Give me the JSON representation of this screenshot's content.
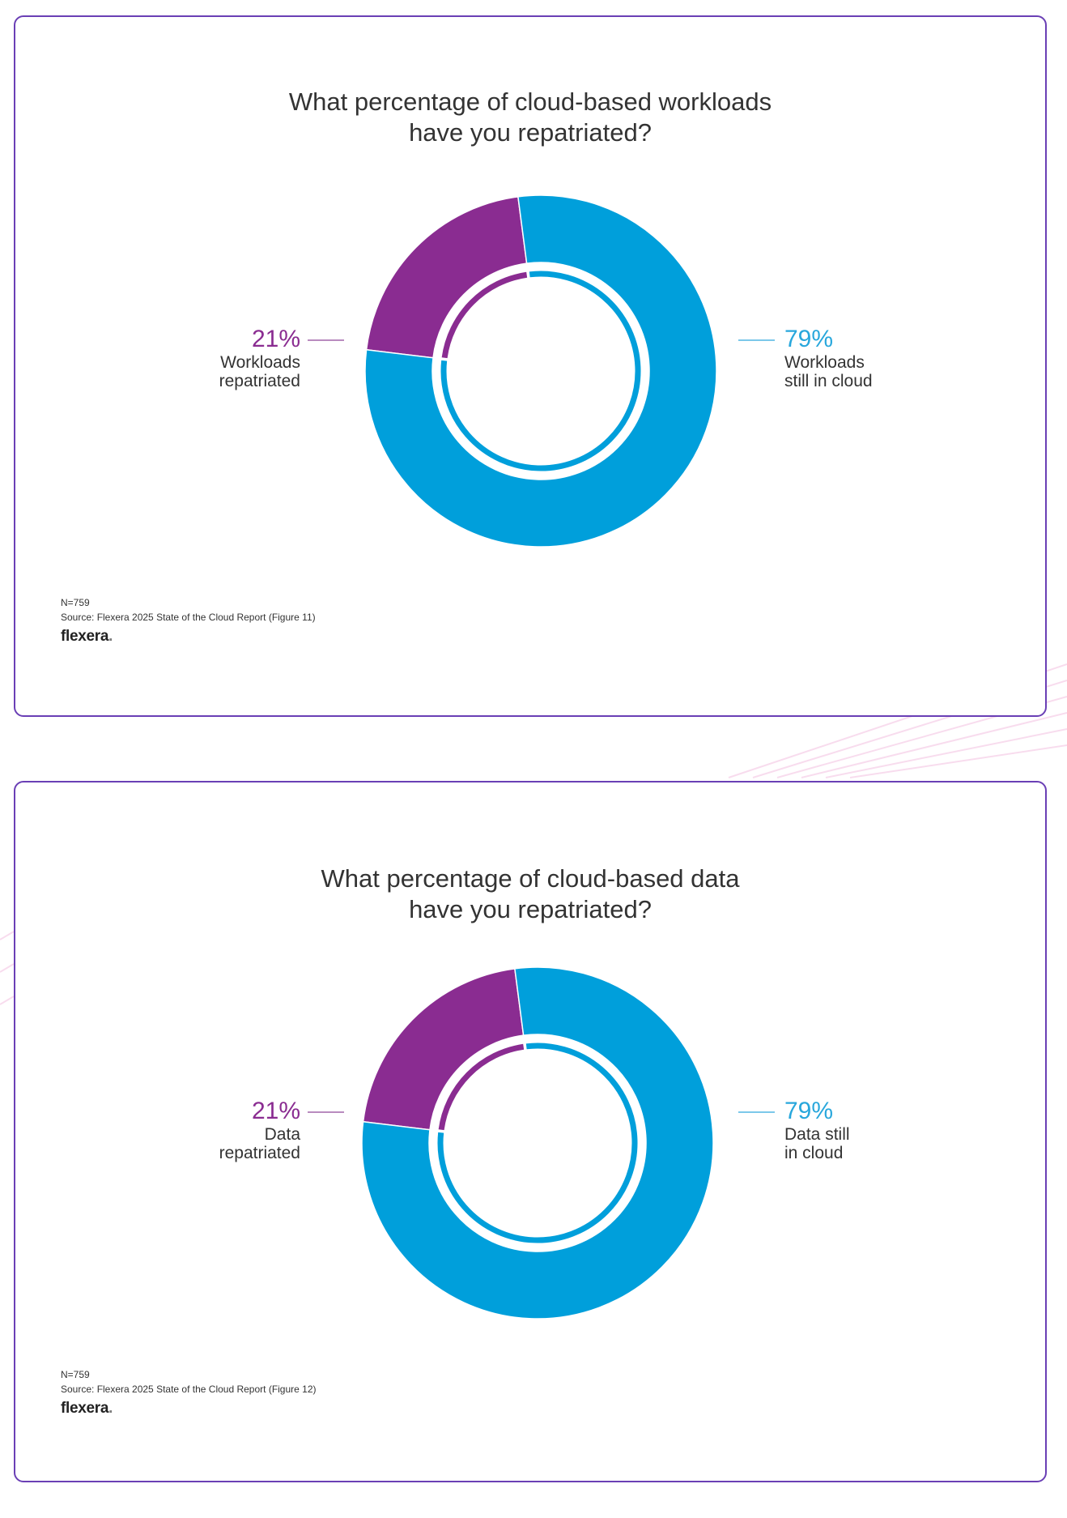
{
  "colors": {
    "purple": "#8a2c91",
    "blue": "#009fdb",
    "border": "#6a3fb5"
  },
  "chart_data": [
    {
      "type": "pie",
      "title": [
        "What percentage of cloud-based workloads",
        "have you repatriated?"
      ],
      "slices": [
        {
          "label": "Workloads repatriated",
          "value": 21,
          "color": "#8a2c91"
        },
        {
          "label": "Workloads still in cloud",
          "value": 79,
          "color": "#009fdb"
        }
      ],
      "labels": {
        "left": {
          "pct": "21%",
          "lines": [
            "Workloads",
            "repatriated"
          ]
        },
        "right": {
          "pct": "79%",
          "lines": [
            "Workloads",
            "still in cloud"
          ]
        }
      },
      "n": "N=759",
      "source": "Source: Flexera 2025 State of the Cloud Report (Figure 11)",
      "brand": "flexera"
    },
    {
      "type": "pie",
      "title": [
        "What percentage of cloud-based data",
        "have you repatriated?"
      ],
      "slices": [
        {
          "label": "Data repatriated",
          "value": 21,
          "color": "#8a2c91"
        },
        {
          "label": "Data still in cloud",
          "value": 79,
          "color": "#009fdb"
        }
      ],
      "labels": {
        "left": {
          "pct": "21%",
          "lines": [
            "Data",
            "repatriated"
          ]
        },
        "right": {
          "pct": "79%",
          "lines": [
            "Data still",
            "in cloud"
          ]
        }
      },
      "n": "N=759",
      "source": "Source: Flexera 2025 State of the Cloud Report (Figure 12)",
      "brand": "flexera"
    }
  ]
}
